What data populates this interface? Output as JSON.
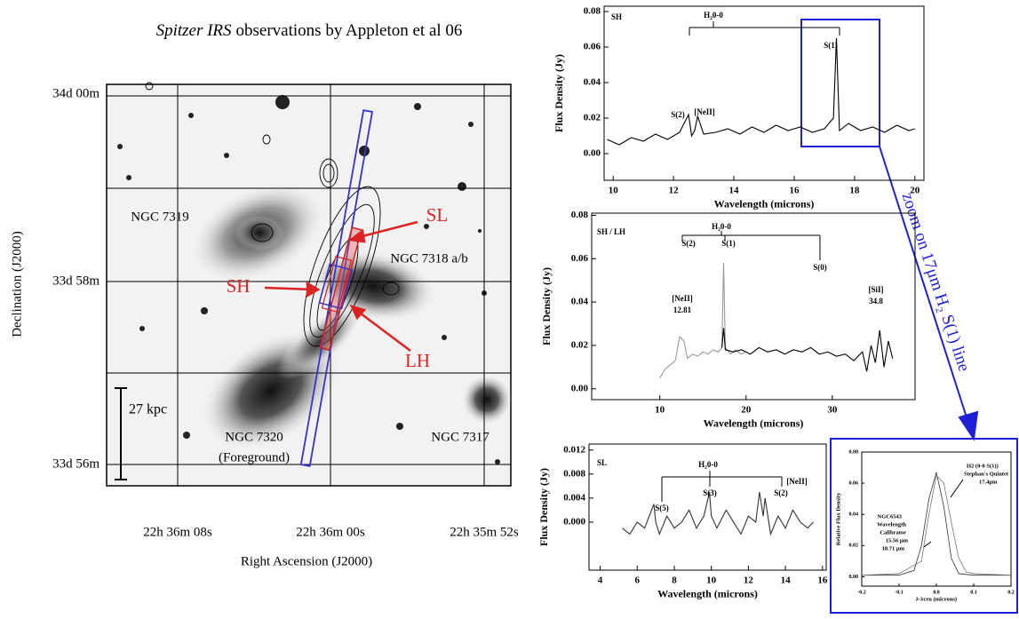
{
  "image_panel": {
    "title_italic": "Spitzer IRS",
    "title_rest": "observations by Appleton et al 06",
    "y_axis_label": "Declination (J2000)",
    "x_axis_label": "Right Ascension (J2000)",
    "y_tick_labels": [
      "34d 00m",
      "33d 58m",
      "33d 56m"
    ],
    "x_tick_labels": [
      "22h 36m 08s",
      "22h 36m 00s",
      "22h 35m 52s"
    ],
    "labels": [
      "NGC 7319",
      "NGC 7318 a/b",
      "NGC 7320",
      "(Foreground)",
      "NGC 7317",
      "27 kpc",
      "SL",
      "SH",
      "LH"
    ]
  },
  "zoom_label": "zoom on 17μm H₂ S(1) line",
  "chart_data": [
    {
      "type": "line",
      "x_label": "Wavelength (microns)",
      "y_label": "Flux Density (Jy)",
      "xlim": [
        9.7,
        20.3
      ],
      "xticks": [
        10,
        12,
        14,
        16,
        18,
        20
      ],
      "ylim": [
        -0.015,
        0.083
      ],
      "yticks": [
        {
          "value": 0,
          "label": "0.00"
        },
        0.02,
        0.04,
        0.06,
        0.08
      ],
      "annotations": [
        "SH",
        "H₂0-0",
        "S(2)",
        "[NeII]",
        "S(1)"
      ],
      "series": [
        {
          "color": "#000000",
          "x": [
            9.8,
            10.2,
            10.6,
            11.0,
            11.4,
            11.8,
            12.2,
            12.5,
            12.6,
            12.7,
            12.8,
            13.0,
            13.4,
            13.8,
            14.2,
            14.6,
            15.0,
            15.4,
            15.8,
            16.2,
            16.6,
            17.0,
            17.3,
            17.4,
            17.5,
            17.8,
            18.2,
            18.6,
            19.0,
            19.4,
            19.8,
            20.0
          ],
          "values": [
            0.008,
            0.005,
            0.009,
            0.007,
            0.011,
            0.008,
            0.012,
            0.022,
            0.01,
            0.013,
            0.021,
            0.011,
            0.012,
            0.014,
            0.011,
            0.015,
            0.012,
            0.016,
            0.013,
            0.015,
            0.012,
            0.014,
            0.02,
            0.065,
            0.013,
            0.017,
            0.013,
            0.015,
            0.012,
            0.016,
            0.013,
            0.014
          ]
        }
      ]
    },
    {
      "type": "line",
      "x_label": "Wavelength (microns)",
      "y_label": "Flux Density (Jy)",
      "xlim": [
        2.1,
        39.6
      ],
      "xticks": [
        10,
        20,
        30
      ],
      "ylim": [
        -0.005,
        0.081
      ],
      "yticks": [
        {
          "value": 0,
          "label": "0.00"
        },
        0.02,
        0.04,
        0.06,
        0.08
      ],
      "annotations": [
        "SH / LH",
        "H₂0-0",
        "S(2)",
        "S(1)",
        "S(0)",
        "[NeII]",
        "12.81",
        "[SiI]",
        "34.8"
      ],
      "series": [
        {
          "color": "#9a9a9a",
          "x": [
            10,
            10.6,
            11.2,
            11.8,
            12.3,
            12.8,
            13.2,
            13.8,
            14.4,
            15,
            15.6,
            16.2,
            16.8,
            17.2,
            17.4,
            17.6,
            18.2,
            18.8,
            19.4,
            20
          ],
          "values": [
            0.005,
            0.009,
            0.011,
            0.013,
            0.024,
            0.022,
            0.014,
            0.016,
            0.015,
            0.017,
            0.016,
            0.018,
            0.017,
            0.019,
            0.058,
            0.019,
            0.016,
            0.018,
            0.016,
            0.017
          ]
        },
        {
          "color": "#000000",
          "x": [
            17.2,
            17.4,
            17.6,
            18.5,
            19.5,
            20.5,
            21.5,
            22.5,
            23.5,
            24.5,
            25.5,
            26.5,
            27.5,
            28.5,
            29.5,
            30.5,
            31.5,
            32.5,
            33.5,
            34.0,
            34.5,
            35.0,
            35.5,
            36.0,
            36.5,
            37.0
          ],
          "values": [
            0.019,
            0.028,
            0.018,
            0.017,
            0.018,
            0.016,
            0.019,
            0.017,
            0.018,
            0.016,
            0.018,
            0.017,
            0.019,
            0.016,
            0.017,
            0.015,
            0.016,
            0.013,
            0.017,
            0.008,
            0.02,
            0.012,
            0.027,
            0.01,
            0.022,
            0.014
          ]
        }
      ]
    },
    {
      "type": "line",
      "x_label": "Wavelength (microns)",
      "y_label": "Flux Density (Jy)",
      "xlim": [
        3.4,
        16.2
      ],
      "xticks": [
        4,
        6,
        8,
        10,
        12,
        14,
        16
      ],
      "ylim": [
        -0.008,
        0.013
      ],
      "yticks": [
        {
          "value": 0,
          "label": "0.000"
        },
        0.004,
        0.008,
        0.012
      ],
      "annotations": [
        "SL",
        "H₂0-0",
        "S(3)",
        "S(5)",
        "S(2)",
        "[NeII]"
      ],
      "series": [
        {
          "color": "#333333",
          "x": [
            5.2,
            5.6,
            6.0,
            6.4,
            6.9,
            7.0,
            7.2,
            7.6,
            8.0,
            8.4,
            8.8,
            9.2,
            9.6,
            9.9,
            10.0,
            10.3,
            10.8,
            11.2,
            11.6,
            12.0,
            12.4,
            12.6,
            12.8,
            12.9,
            13.2,
            13.6,
            14.0,
            14.4,
            14.8,
            15.2,
            15.5
          ],
          "values": [
            -0.001,
            -0.002,
            0.0,
            -0.001,
            0.003,
            0.0,
            -0.002,
            0.001,
            -0.001,
            0.0,
            0.002,
            -0.001,
            0.001,
            0.005,
            0.001,
            -0.001,
            0.002,
            0.0,
            -0.002,
            0.001,
            0.0,
            0.005,
            0.001,
            0.004,
            -0.002,
            0.001,
            -0.001,
            0.002,
            0.0,
            -0.001,
            0.0
          ]
        }
      ]
    },
    {
      "type": "line",
      "x_label": "λ-λcen (microns)",
      "y_label": "Relative Flux Density",
      "xlim": [
        -0.2,
        0.2
      ],
      "xticks": [
        -0.2,
        -0.1,
        {
          "value": 0,
          "label": "0.0"
        },
        0.1,
        0.2
      ],
      "ylim": [
        -0.006,
        0.08
      ],
      "yticks": [
        {
          "value": 0,
          "label": "0.00"
        },
        0.02,
        0.04,
        0.06,
        0.08
      ],
      "annotations": [
        "NGC6543",
        "Wavelength",
        "Calibrator",
        "15.56 μm",
        "18.71 μm",
        "H2 (0-0 S(1))",
        "Stephan's Quintet",
        "17.4μm"
      ],
      "series": [
        {
          "color": "#333333",
          "x": [
            -0.2,
            -0.1,
            -0.06,
            -0.04,
            -0.02,
            0.0,
            0.02,
            0.04,
            0.06,
            0.1,
            0.2
          ],
          "values": [
            0.001,
            0.001,
            0.004,
            0.02,
            0.05,
            0.067,
            0.045,
            0.012,
            0.002,
            0.001,
            0.001
          ]
        },
        {
          "color": "#777777",
          "x": [
            -0.2,
            -0.1,
            -0.04,
            -0.02,
            0.0,
            0.02,
            0.04,
            0.06,
            0.08,
            0.1,
            0.2
          ],
          "values": [
            0.001,
            0.002,
            0.01,
            0.04,
            0.065,
            0.06,
            0.035,
            0.012,
            0.003,
            0.002,
            0.001
          ]
        }
      ]
    }
  ]
}
